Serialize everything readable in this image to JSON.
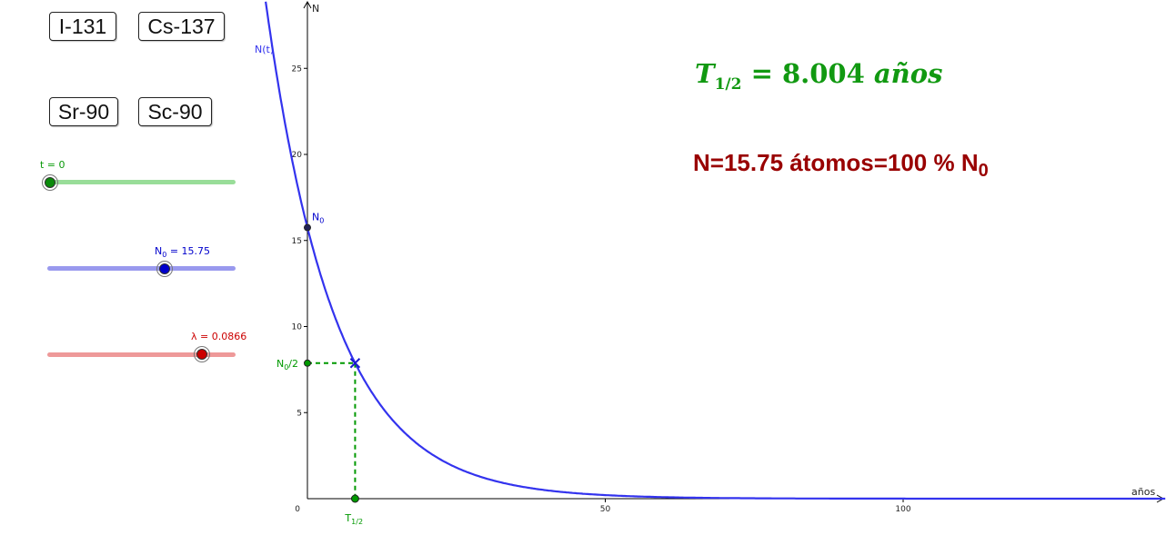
{
  "buttons": [
    {
      "label": "I-131"
    },
    {
      "label": "Cs-137"
    },
    {
      "label": "Sr-90"
    },
    {
      "label": "Sc-90"
    }
  ],
  "sliders": {
    "t": {
      "label": "t = 0",
      "value": 0,
      "min": 0,
      "max": 50,
      "color": "#0a9a0a",
      "track": "#99dd99"
    },
    "n0": {
      "label_main": "N",
      "label_sub": "0",
      "label_rest": " = 15.75",
      "value": 15.75,
      "min": 0,
      "max": 30,
      "color": "#0000cc",
      "track": "#9999ee"
    },
    "lambda": {
      "label": "λ = 0.0866",
      "value": 0.0866,
      "min": 0,
      "max": 0.105,
      "color": "#cc0000",
      "track": "#ee9999"
    }
  },
  "chart_data": {
    "type": "line",
    "xlabel": "años",
    "ylabel": "N",
    "xlim": [
      0,
      144
    ],
    "ylim": [
      0,
      29
    ],
    "x_ticks": [
      0,
      50,
      100
    ],
    "y_ticks": [
      5,
      10,
      15,
      20,
      25
    ],
    "curve": {
      "label": "N(t)",
      "N0": 15.75,
      "lambda": 0.0866,
      "color": "#3333ee"
    },
    "points": {
      "n0_label_main": "N",
      "n0_label_sub": "0",
      "half_point": {
        "x": 8.004,
        "y": 7.875
      },
      "half_y_label_main": "N",
      "half_y_label_sub": "0",
      "half_y_label_rest": "/2",
      "half_x_label_main": "T",
      "half_x_label_sub": "1/2",
      "color": "#009900"
    }
  },
  "formula": {
    "half_life_T": "T",
    "half_life_sub": "1/2",
    "half_life_rest": " = 8.004 ",
    "half_life_unit": "años",
    "half_life_color": "#119911"
  },
  "status": {
    "text": "N=15.75 átomos=100 % N",
    "sub": "0",
    "color": "#990000"
  }
}
